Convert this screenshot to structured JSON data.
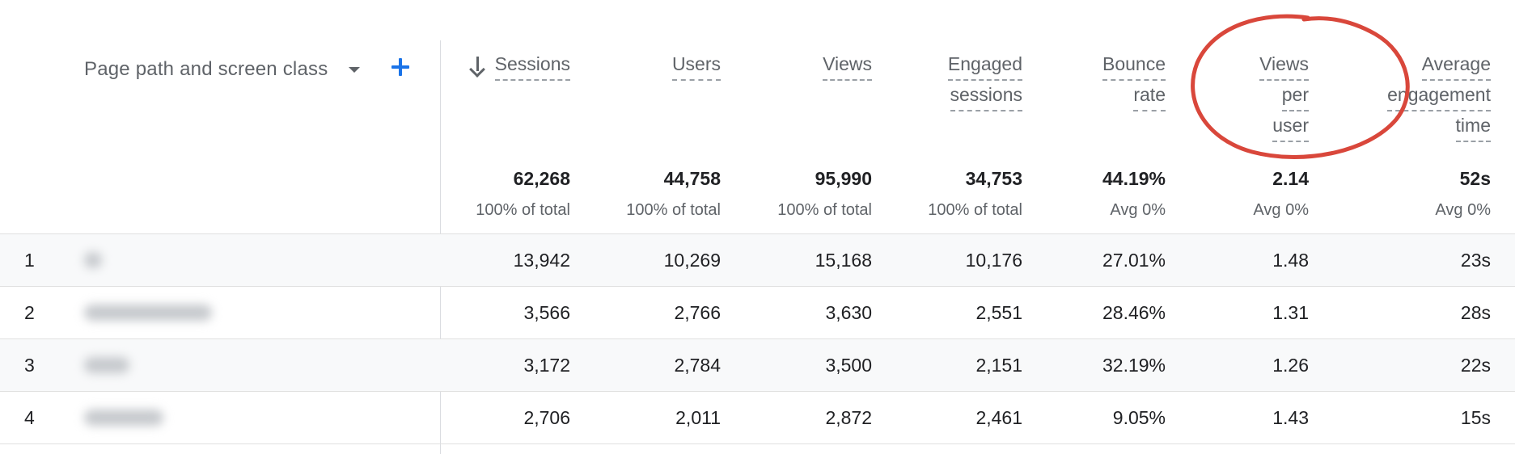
{
  "dimension": {
    "label": "Page path and screen class",
    "caret_icon": "caret-down-icon",
    "add_icon": "plus-icon"
  },
  "metrics": [
    {
      "key": "sessions",
      "header_lines": [
        "Sessions"
      ],
      "sorted": true,
      "sort_icon": "arrow-down-icon",
      "total": "62,268",
      "total_sub": "100% of total"
    },
    {
      "key": "users",
      "header_lines": [
        "Users"
      ],
      "total": "44,758",
      "total_sub": "100% of total"
    },
    {
      "key": "views",
      "header_lines": [
        "Views"
      ],
      "total": "95,990",
      "total_sub": "100% of total"
    },
    {
      "key": "engaged_sessions",
      "header_lines": [
        "Engaged",
        "sessions"
      ],
      "total": "34,753",
      "total_sub": "100% of total"
    },
    {
      "key": "bounce_rate",
      "header_lines": [
        "Bounce",
        "rate"
      ],
      "total": "44.19%",
      "total_sub": "Avg 0%"
    },
    {
      "key": "views_per_user",
      "header_lines": [
        "Views",
        "per",
        "user"
      ],
      "total": "2.14",
      "total_sub": "Avg 0%"
    },
    {
      "key": "avg_engagement_time",
      "header_lines": [
        "Average",
        "engagement",
        "time"
      ],
      "total": "52s",
      "total_sub": "Avg 0%"
    }
  ],
  "rows": [
    {
      "index": "1",
      "values": [
        "13,942",
        "10,269",
        "15,168",
        "10,176",
        "27.01%",
        "1.48",
        "23s"
      ]
    },
    {
      "index": "2",
      "values": [
        "3,566",
        "2,766",
        "3,630",
        "2,551",
        "28.46%",
        "1.31",
        "28s"
      ]
    },
    {
      "index": "3",
      "values": [
        "3,172",
        "2,784",
        "3,500",
        "2,151",
        "32.19%",
        "1.26",
        "22s"
      ]
    },
    {
      "index": "4",
      "values": [
        "2,706",
        "2,011",
        "2,872",
        "2,461",
        "9.05%",
        "1.43",
        "15s"
      ]
    }
  ],
  "colors": {
    "accent": "#1a73e8",
    "annotation_circle": "#d9473b",
    "row_shade": "#f8f9fa",
    "divider": "#dadce0"
  }
}
